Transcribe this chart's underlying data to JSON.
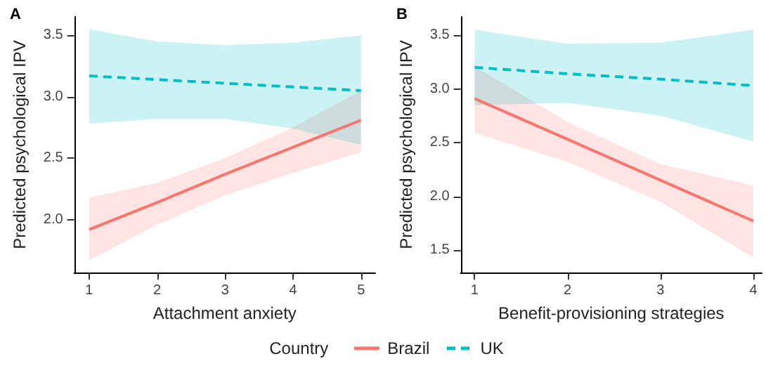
{
  "chart_data": [
    {
      "type": "line",
      "title": "A",
      "xlabel": "Attachment anxiety",
      "ylabel": "Predicted psychological IPV",
      "legend_title": "Country",
      "legend": "bottom",
      "grid": false,
      "marker": "none",
      "xlim": [
        0.78,
        5.21
      ],
      "xticks": [
        1,
        2,
        3,
        4,
        5
      ],
      "ylim": [
        1.57,
        3.65
      ],
      "yticks": [
        {
          "value": 2,
          "label": "2.0"
        },
        {
          "value": 2.5,
          "label": "2.5"
        },
        {
          "value": 3,
          "label": "3.0"
        },
        {
          "value": 3.5,
          "label": "3.5"
        }
      ],
      "series": [
        {
          "name": "Brazil",
          "color": "#f8766d",
          "line_style": "solid",
          "x": [
            1,
            2,
            3,
            4,
            5
          ],
          "values": [
            1.92,
            2.14,
            2.37,
            2.59,
            2.81
          ],
          "lower": [
            1.67,
            1.96,
            2.2,
            2.38,
            2.55
          ],
          "upper": [
            2.18,
            2.3,
            2.5,
            2.75,
            3.05
          ]
        },
        {
          "name": "UK",
          "color": "#00bfc4",
          "line_style": "dashed",
          "x": [
            1,
            2,
            3,
            4,
            5
          ],
          "values": [
            3.17,
            3.14,
            3.11,
            3.08,
            3.05
          ],
          "lower": [
            2.78,
            2.82,
            2.82,
            2.74,
            2.61
          ],
          "upper": [
            3.55,
            3.45,
            3.42,
            3.44,
            3.5
          ]
        }
      ]
    },
    {
      "type": "line",
      "title": "B",
      "xlabel": "Benefit-provisioning strategies",
      "ylabel": "Predicted psychological IPV",
      "grid": false,
      "marker": "none",
      "xlim": [
        0.85,
        4.09
      ],
      "xticks": [
        1,
        2,
        3,
        4
      ],
      "ylim": [
        1.29,
        3.67
      ],
      "yticks": [
        {
          "value": 1.5,
          "label": "1.5"
        },
        {
          "value": 2,
          "label": "2.0"
        },
        {
          "value": 2.5,
          "label": "2.5"
        },
        {
          "value": 3,
          "label": "3.0"
        },
        {
          "value": 3.5,
          "label": "3.5"
        }
      ],
      "series": [
        {
          "color": "#f8766d",
          "line_style": "solid",
          "x": [
            1,
            2,
            3,
            4
          ],
          "values": [
            2.91,
            2.53,
            2.15,
            1.77
          ],
          "lower": [
            2.59,
            2.32,
            1.95,
            1.43
          ],
          "upper": [
            3.21,
            2.69,
            2.3,
            2.1
          ]
        },
        {
          "color": "#00bfc4",
          "line_style": "dashed",
          "x": [
            1,
            2,
            3,
            4
          ],
          "values": [
            3.2,
            3.14,
            3.09,
            3.03
          ],
          "lower": [
            2.85,
            2.87,
            2.75,
            2.51
          ],
          "upper": [
            3.55,
            3.42,
            3.43,
            3.55
          ]
        }
      ]
    }
  ]
}
